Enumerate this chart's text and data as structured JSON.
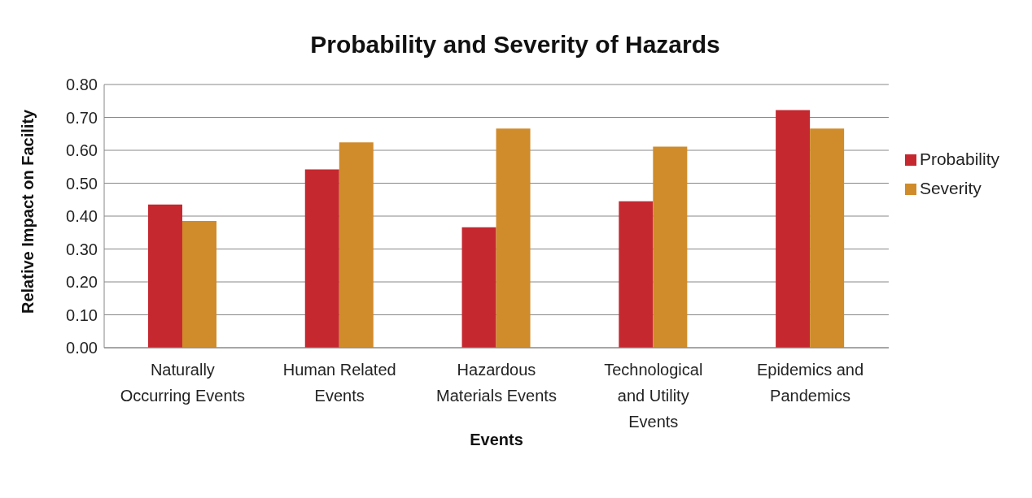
{
  "chart_data": {
    "type": "bar",
    "title": "Probability and Severity of Hazards",
    "xlabel": "Events",
    "ylabel": "Relative Impact on Facility",
    "categories": [
      "Naturally Occurring Events",
      "Human Related Events",
      "Hazardous Materials Events",
      "Technological and Utility Events",
      "Epidemics and Pandemics"
    ],
    "series": [
      {
        "name": "Probability",
        "color": "#c5282f",
        "values": [
          0.435,
          0.542,
          0.366,
          0.445,
          0.722
        ]
      },
      {
        "name": "Severity",
        "color": "#d08b2b",
        "values": [
          0.385,
          0.624,
          0.666,
          0.611,
          0.666
        ]
      }
    ],
    "ylim": [
      0,
      0.8
    ],
    "yticks": [
      {
        "value": 0,
        "label": "0.00"
      },
      {
        "value": 0.1,
        "label": "0.10"
      },
      {
        "value": 0.2,
        "label": "0.20"
      },
      {
        "value": 0.3,
        "label": "0.30"
      },
      {
        "value": 0.4,
        "label": "0.40"
      },
      {
        "value": 0.5,
        "label": "0.50"
      },
      {
        "value": 0.6,
        "label": "0.60"
      },
      {
        "value": 0.7,
        "label": "0.70"
      },
      {
        "value": 0.8,
        "label": "0.80"
      }
    ],
    "grid": "y",
    "legend": "right"
  }
}
